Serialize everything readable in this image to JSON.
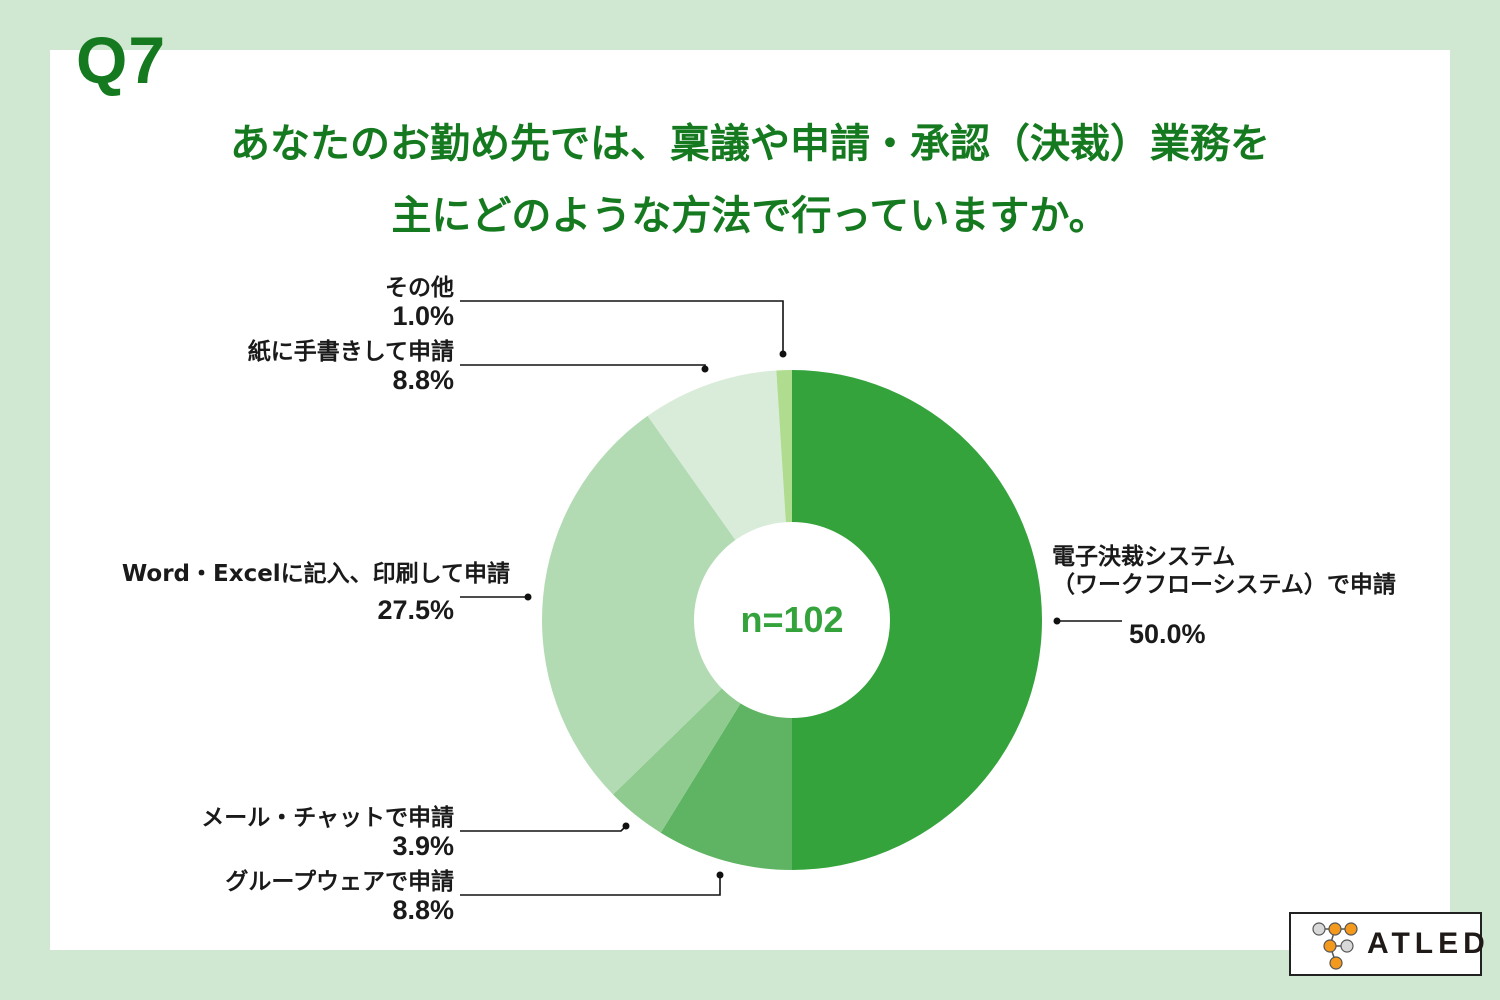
{
  "header": {
    "question_number": "Q7",
    "title_line1": "あなたのお勤め先では、稟議や申請・承認（決裁）業務を",
    "title_line2": "主にどのような方法で行っていますか。"
  },
  "center_label": "n=102",
  "labels": {
    "electronic": {
      "line1": "電子決裁システム",
      "line2": "（ワークフローシステム）で申請",
      "pct": "50.0%"
    },
    "groupware": {
      "line1": "グループウェアで申請",
      "pct": "8.8%"
    },
    "mail_chat": {
      "line1": "メール・チャットで申請",
      "pct": "3.9%"
    },
    "word_excel": {
      "line1": "Word・Excelに記入、印刷して申請",
      "pct": "27.5%"
    },
    "paper": {
      "line1": "紙に手書きして申請",
      "pct": "8.8%"
    },
    "other": {
      "line1": "その他",
      "pct": "1.0%"
    }
  },
  "logo": {
    "text": "ATLED"
  },
  "chart_data": {
    "type": "pie",
    "variant": "donut",
    "title": "あなたのお勤め先では、稟議や申請・承認（決裁）業務を主にどのような方法で行っていますか。",
    "question": "Q7",
    "sample_size": "n=102",
    "start_angle": "12 o'clock",
    "direction": "clockwise",
    "categories": [
      "電子決裁システム（ワークフローシステム）で申請",
      "グループウェアで申請",
      "メール・チャットで申請",
      "Word・Excelに記入、印刷して申請",
      "紙に手書きして申請",
      "その他"
    ],
    "values": [
      50.0,
      8.8,
      3.9,
      27.5,
      8.8,
      1.0
    ],
    "unit": "%",
    "colors": [
      "#35a33c",
      "#5fb463",
      "#8fcb8f",
      "#b2dbb3",
      "#d9ecd9",
      "#b0dc8f"
    ],
    "legend": "leader-line labels outside slices"
  },
  "colors": {
    "background": "#d0e8d2",
    "panel": "#ffffff",
    "title": "#157a1f",
    "center_text": "#35a33c",
    "label_text": "#1a1a1a"
  }
}
